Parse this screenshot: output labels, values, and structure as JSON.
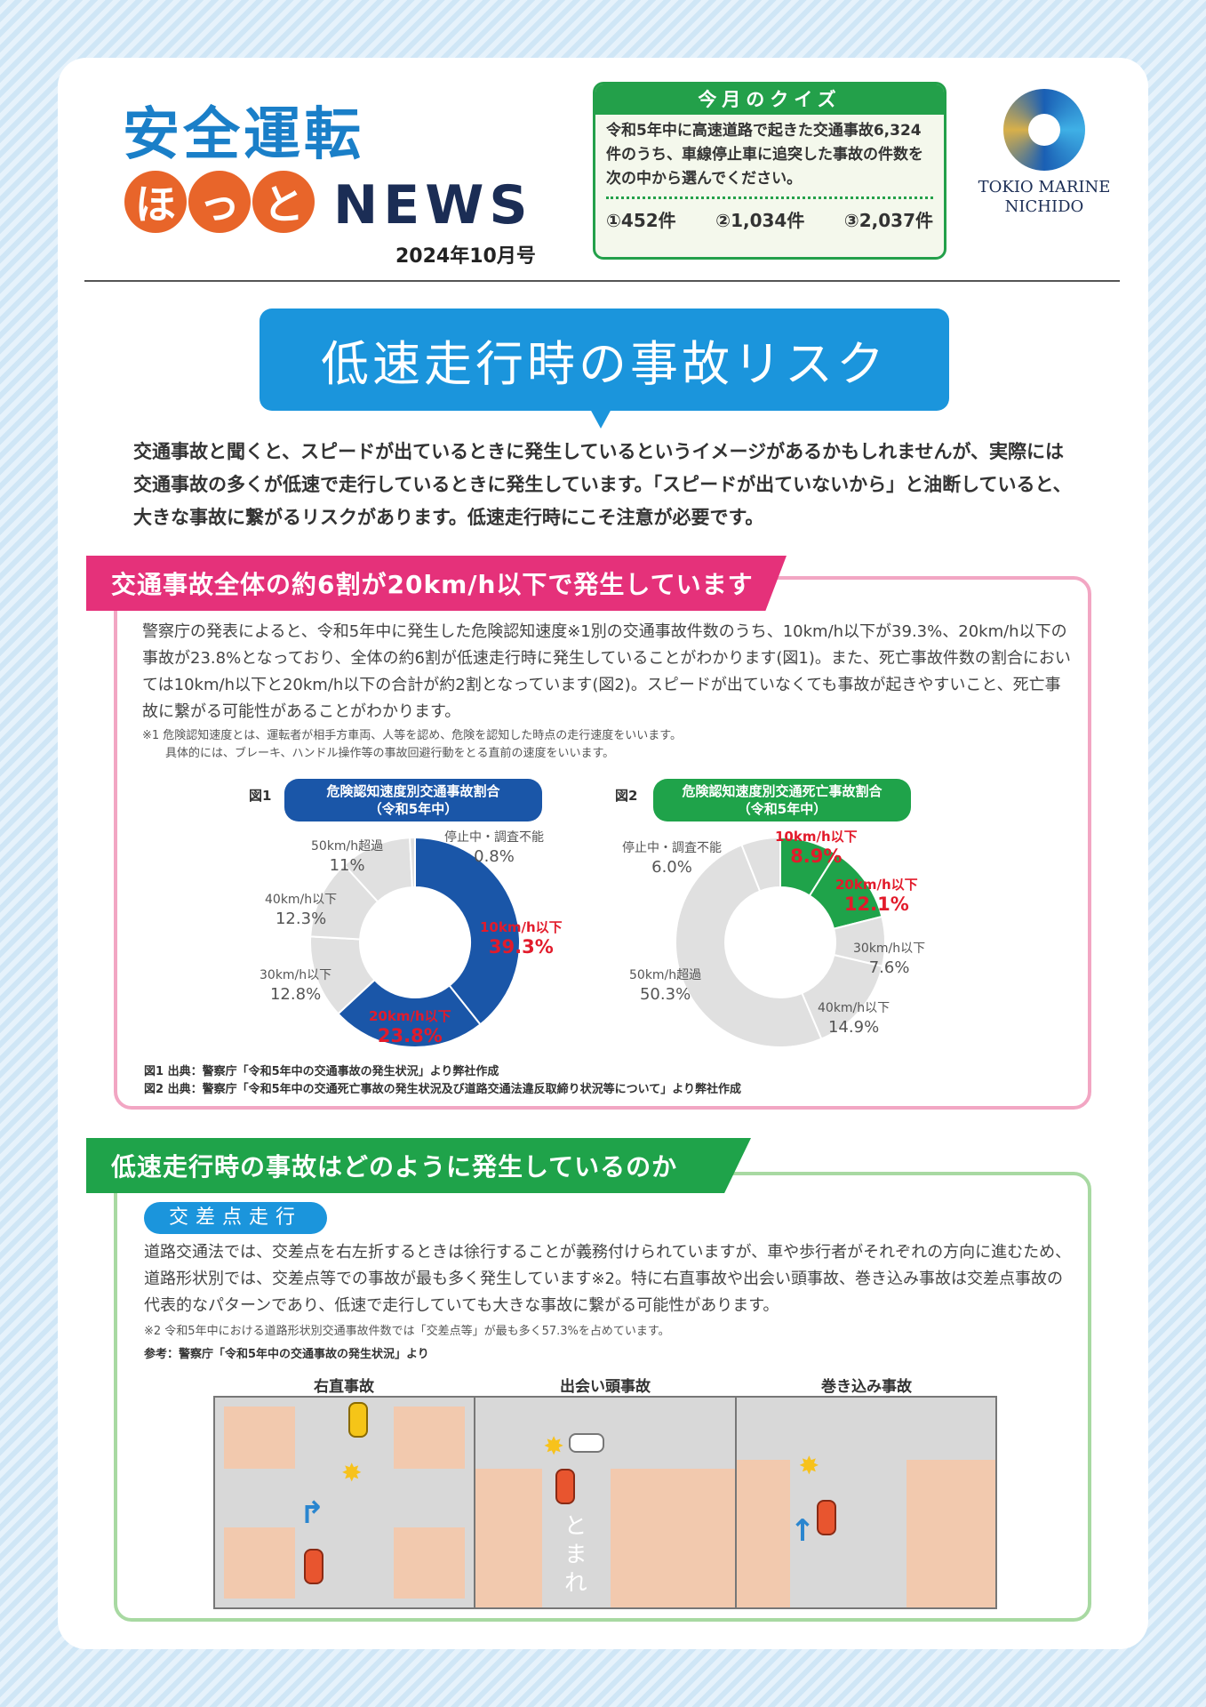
{
  "header": {
    "title_line1": "安全運転",
    "hotto": [
      "ほ",
      "っ",
      "と"
    ],
    "news": "NEWS",
    "issue": "2024年10月号"
  },
  "quiz": {
    "title": "今月のクイズ",
    "question": "令和5年中に高速道路で起きた交通事故6,324件のうち、車線停止車に追突した事故の件数を次の中から選んでください。",
    "options": [
      "①452件",
      "②1,034件",
      "③2,037件"
    ]
  },
  "logo": {
    "line1": "TOKIO MARINE",
    "line2": "NICHIDO"
  },
  "banner": {
    "title": "低速走行時の事故リスク"
  },
  "intro": "交通事故と聞くと、スピードが出ているときに発生しているというイメージがあるかもしれませんが、実際には交通事故の多くが低速で走行しているときに発生しています。「スピードが出ていないから」と油断していると、大きな事故に繋がるリスクがあります。低速走行時にこそ注意が必要です。",
  "section1": {
    "heading": "交通事故全体の約6割が20km/h以下で発生しています",
    "body": "警察庁の発表によると、令和5年中に発生した危険認知速度※1別の交通事故件数のうち、10km/h以下が39.3%、20km/h以下の事故が23.8%となっており、全体の約6割が低速走行時に発生していることがわかります(図1)。また、死亡事故件数の割合においては10km/h以下と20km/h以下の合計が約2割となっています(図2)。スピードが出ていなくても事故が起きやすいこと、死亡事故に繋がる可能性があることがわかります。",
    "note1": "※1 危険認知速度とは、運転者が相手方車両、人等を認め、危険を認知した時点の走行速度をいいます。",
    "note2": "　　具体的には、ブレーキ、ハンドル操作等の事故回避行動をとる直前の速度をいいます。",
    "source1": "図1 出典：警察庁「令和5年中の交通事故の発生状況」より弊社作成",
    "source2": "図2 出典：警察庁「令和5年中の交通死亡事故の発生状況及び道路交通法違反取締り状況等について」より弊社作成"
  },
  "chart_data": [
    {
      "type": "pie",
      "figure": "図1",
      "title": "危険認知速度別交通事故割合",
      "subtitle": "（令和5年中）",
      "accent": "#1a56a8",
      "categories": [
        "10km/h以下",
        "20km/h以下",
        "30km/h以下",
        "40km/h以下",
        "50km/h超過",
        "停止中・調査不能"
      ],
      "values": [
        39.3,
        23.8,
        12.8,
        12.3,
        11,
        0.8
      ],
      "labels": [
        "39.3%",
        "23.8%",
        "12.8%",
        "12.3%",
        "11%",
        "0.8%"
      ],
      "highlighted": [
        true,
        true,
        false,
        false,
        false,
        false
      ]
    },
    {
      "type": "pie",
      "figure": "図2",
      "title": "危険認知速度別交通死亡事故割合",
      "subtitle": "（令和5年中）",
      "accent": "#1fa34a",
      "categories": [
        "10km/h以下",
        "20km/h以下",
        "30km/h以下",
        "40km/h以下",
        "50km/h超過",
        "停止中・調査不能"
      ],
      "values": [
        8.9,
        12.1,
        7.6,
        14.9,
        50.3,
        6.0
      ],
      "labels": [
        "8.9%",
        "12.1%",
        "7.6%",
        "14.9%",
        "50.3%",
        "6.0%"
      ],
      "highlighted": [
        true,
        true,
        false,
        false,
        false,
        false
      ]
    }
  ],
  "section2": {
    "heading": "低速走行時の事故はどのように発生しているのか",
    "pill": "交差点走行",
    "body": "道路交通法では、交差点を右左折するときは徐行することが義務付けられていますが、車や歩行者がそれぞれの方向に進むため、道路形状別では、交差点等での事故が最も多く発生しています※2。特に右直事故や出会い頭事故、巻き込み事故は交差点事故の代表的なパターンであり、低速で走行していても大きな事故に繋がる可能性があります。",
    "note": "※2 令和5年中における道路形状別交通事故件数では「交差点等」が最も多く57.3%を占めています。",
    "reference": "参考：警察庁「令和5年中の交通事故の発生状況」より",
    "diagrams": [
      "右直事故",
      "出会い頭事故",
      "巻き込み事故"
    ],
    "road_text": "とまれ"
  }
}
